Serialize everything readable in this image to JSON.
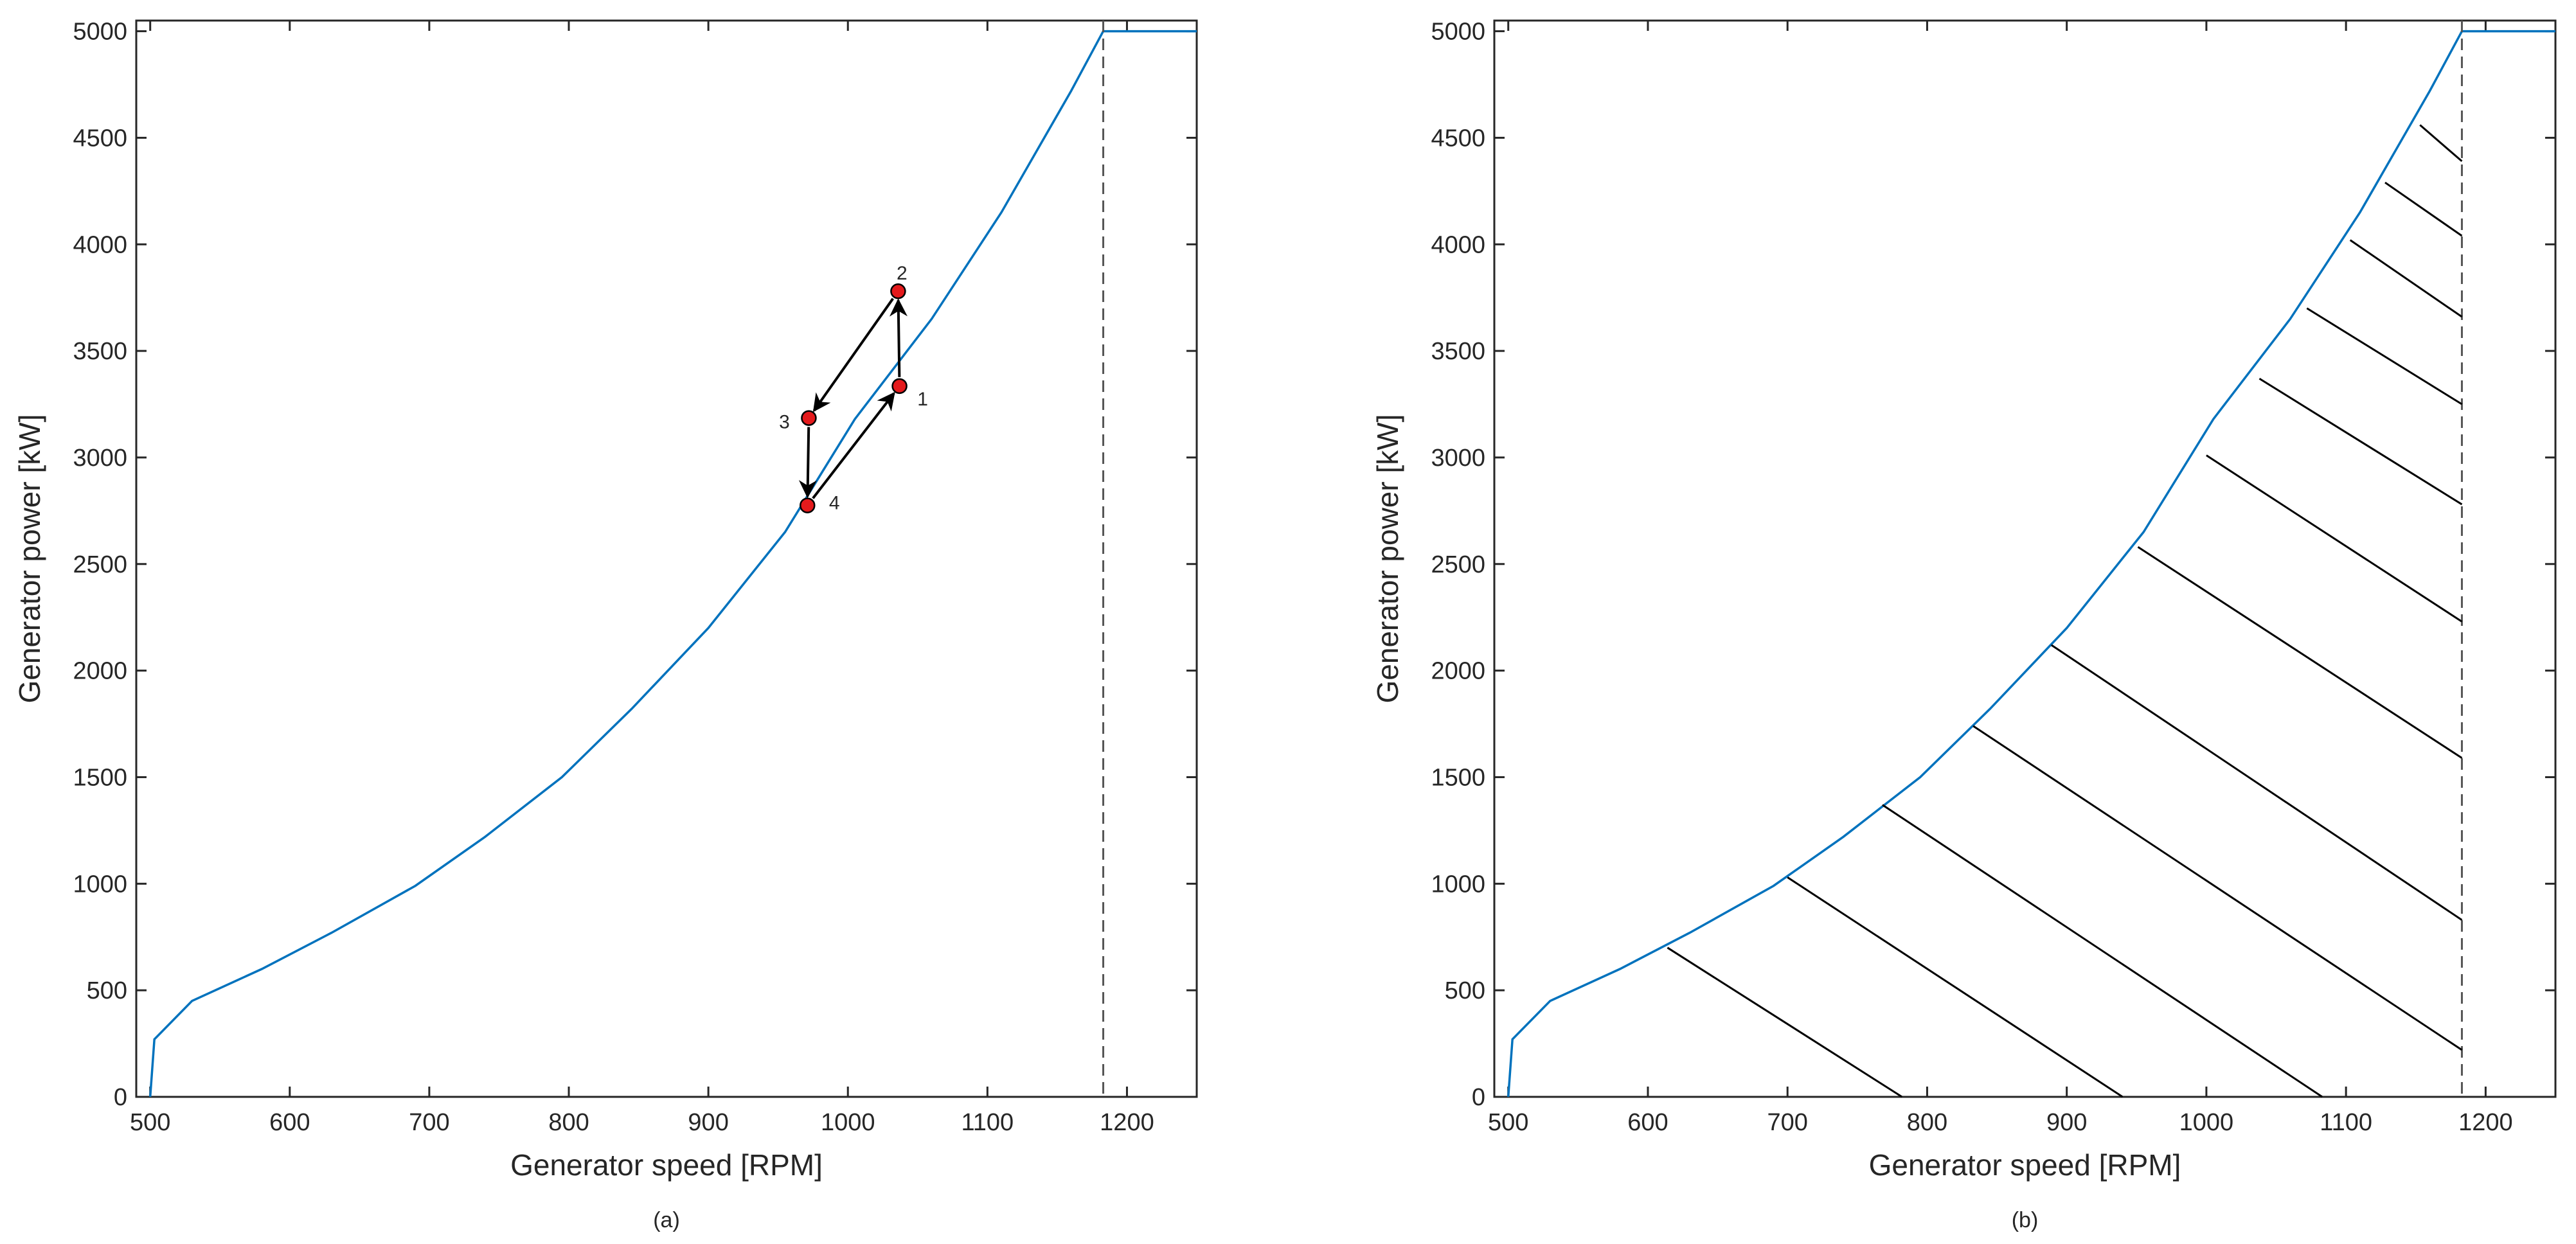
{
  "colors": {
    "curve": "#0072BD",
    "axes": "#262626",
    "marker_fill": "#e41a1c",
    "dashed": "#555555",
    "hatch": "#000000",
    "arrow": "#000000"
  },
  "chart_data": [
    {
      "type": "line",
      "caption": "(a)",
      "xlabel": "Generator speed [RPM]",
      "ylabel": "Generator power [kW]",
      "xlim": [
        490,
        1250
      ],
      "ylim": [
        0,
        5050
      ],
      "xticks": [
        500,
        600,
        700,
        800,
        900,
        1000,
        1100,
        1200
      ],
      "yticks": [
        0,
        500,
        1000,
        1500,
        2000,
        2500,
        3000,
        3500,
        4000,
        4500,
        5000
      ],
      "grid": false,
      "series": [
        {
          "x": [
            500,
            503,
            530,
            580,
            630,
            690,
            740,
            795,
            845,
            900,
            955,
            1005,
            1060,
            1110,
            1160,
            1183,
            1183,
            1250
          ],
          "y": [
            0,
            270,
            450,
            600,
            770,
            990,
            1220,
            1500,
            1820,
            2200,
            2650,
            3180,
            3650,
            4150,
            4720,
            5000,
            5000,
            5000
          ]
        }
      ],
      "vertical_line": {
        "x": 1183,
        "style": "dashed"
      },
      "points": [
        {
          "label": "1",
          "x": 1037,
          "y": 3335
        },
        {
          "label": "2",
          "x": 1036,
          "y": 3780
        },
        {
          "label": "3",
          "x": 972,
          "y": 3185
        },
        {
          "label": "4",
          "x": 971,
          "y": 2775
        }
      ],
      "arrows": [
        {
          "from": "1",
          "to": "2"
        },
        {
          "from": "2",
          "to": "3"
        },
        {
          "from": "3",
          "to": "4"
        },
        {
          "from": "4",
          "to": "1"
        }
      ]
    },
    {
      "type": "line",
      "caption": "(b)",
      "xlabel": "Generator speed [RPM]",
      "ylabel": "Generator power [kW]",
      "xlim": [
        490,
        1250
      ],
      "ylim": [
        0,
        5050
      ],
      "xticks": [
        500,
        600,
        700,
        800,
        900,
        1000,
        1100,
        1200
      ],
      "yticks": [
        0,
        500,
        1000,
        1500,
        2000,
        2500,
        3000,
        3500,
        4000,
        4500,
        5000
      ],
      "grid": false,
      "series": [
        {
          "x": [
            500,
            503,
            530,
            580,
            630,
            690,
            740,
            795,
            845,
            900,
            955,
            1005,
            1060,
            1110,
            1160,
            1183,
            1183,
            1250
          ],
          "y": [
            0,
            270,
            450,
            600,
            770,
            990,
            1220,
            1500,
            1820,
            2200,
            2650,
            3180,
            3650,
            4150,
            4720,
            5000,
            5000,
            5000
          ]
        }
      ],
      "vertical_line": {
        "x": 1183,
        "style": "dashed"
      },
      "hatch_lines": [
        {
          "x1": 614,
          "y1": 700,
          "x2": 782,
          "y2": 0
        },
        {
          "x1": 700,
          "y1": 1030,
          "x2": 940,
          "y2": 0
        },
        {
          "x1": 768,
          "y1": 1370,
          "x2": 1083,
          "y2": 0
        },
        {
          "x1": 833,
          "y1": 1740,
          "x2": 1183,
          "y2": 220
        },
        {
          "x1": 889,
          "y1": 2120,
          "x2": 1183,
          "y2": 830
        },
        {
          "x1": 951,
          "y1": 2580,
          "x2": 1183,
          "y2": 1590
        },
        {
          "x1": 1000,
          "y1": 3010,
          "x2": 1183,
          "y2": 2230
        },
        {
          "x1": 1038,
          "y1": 3370,
          "x2": 1183,
          "y2": 2780
        },
        {
          "x1": 1072,
          "y1": 3700,
          "x2": 1183,
          "y2": 3250
        },
        {
          "x1": 1103,
          "y1": 4020,
          "x2": 1183,
          "y2": 3660
        },
        {
          "x1": 1128,
          "y1": 4290,
          "x2": 1183,
          "y2": 4040
        },
        {
          "x1": 1153,
          "y1": 4560,
          "x2": 1183,
          "y2": 4390
        }
      ]
    }
  ]
}
